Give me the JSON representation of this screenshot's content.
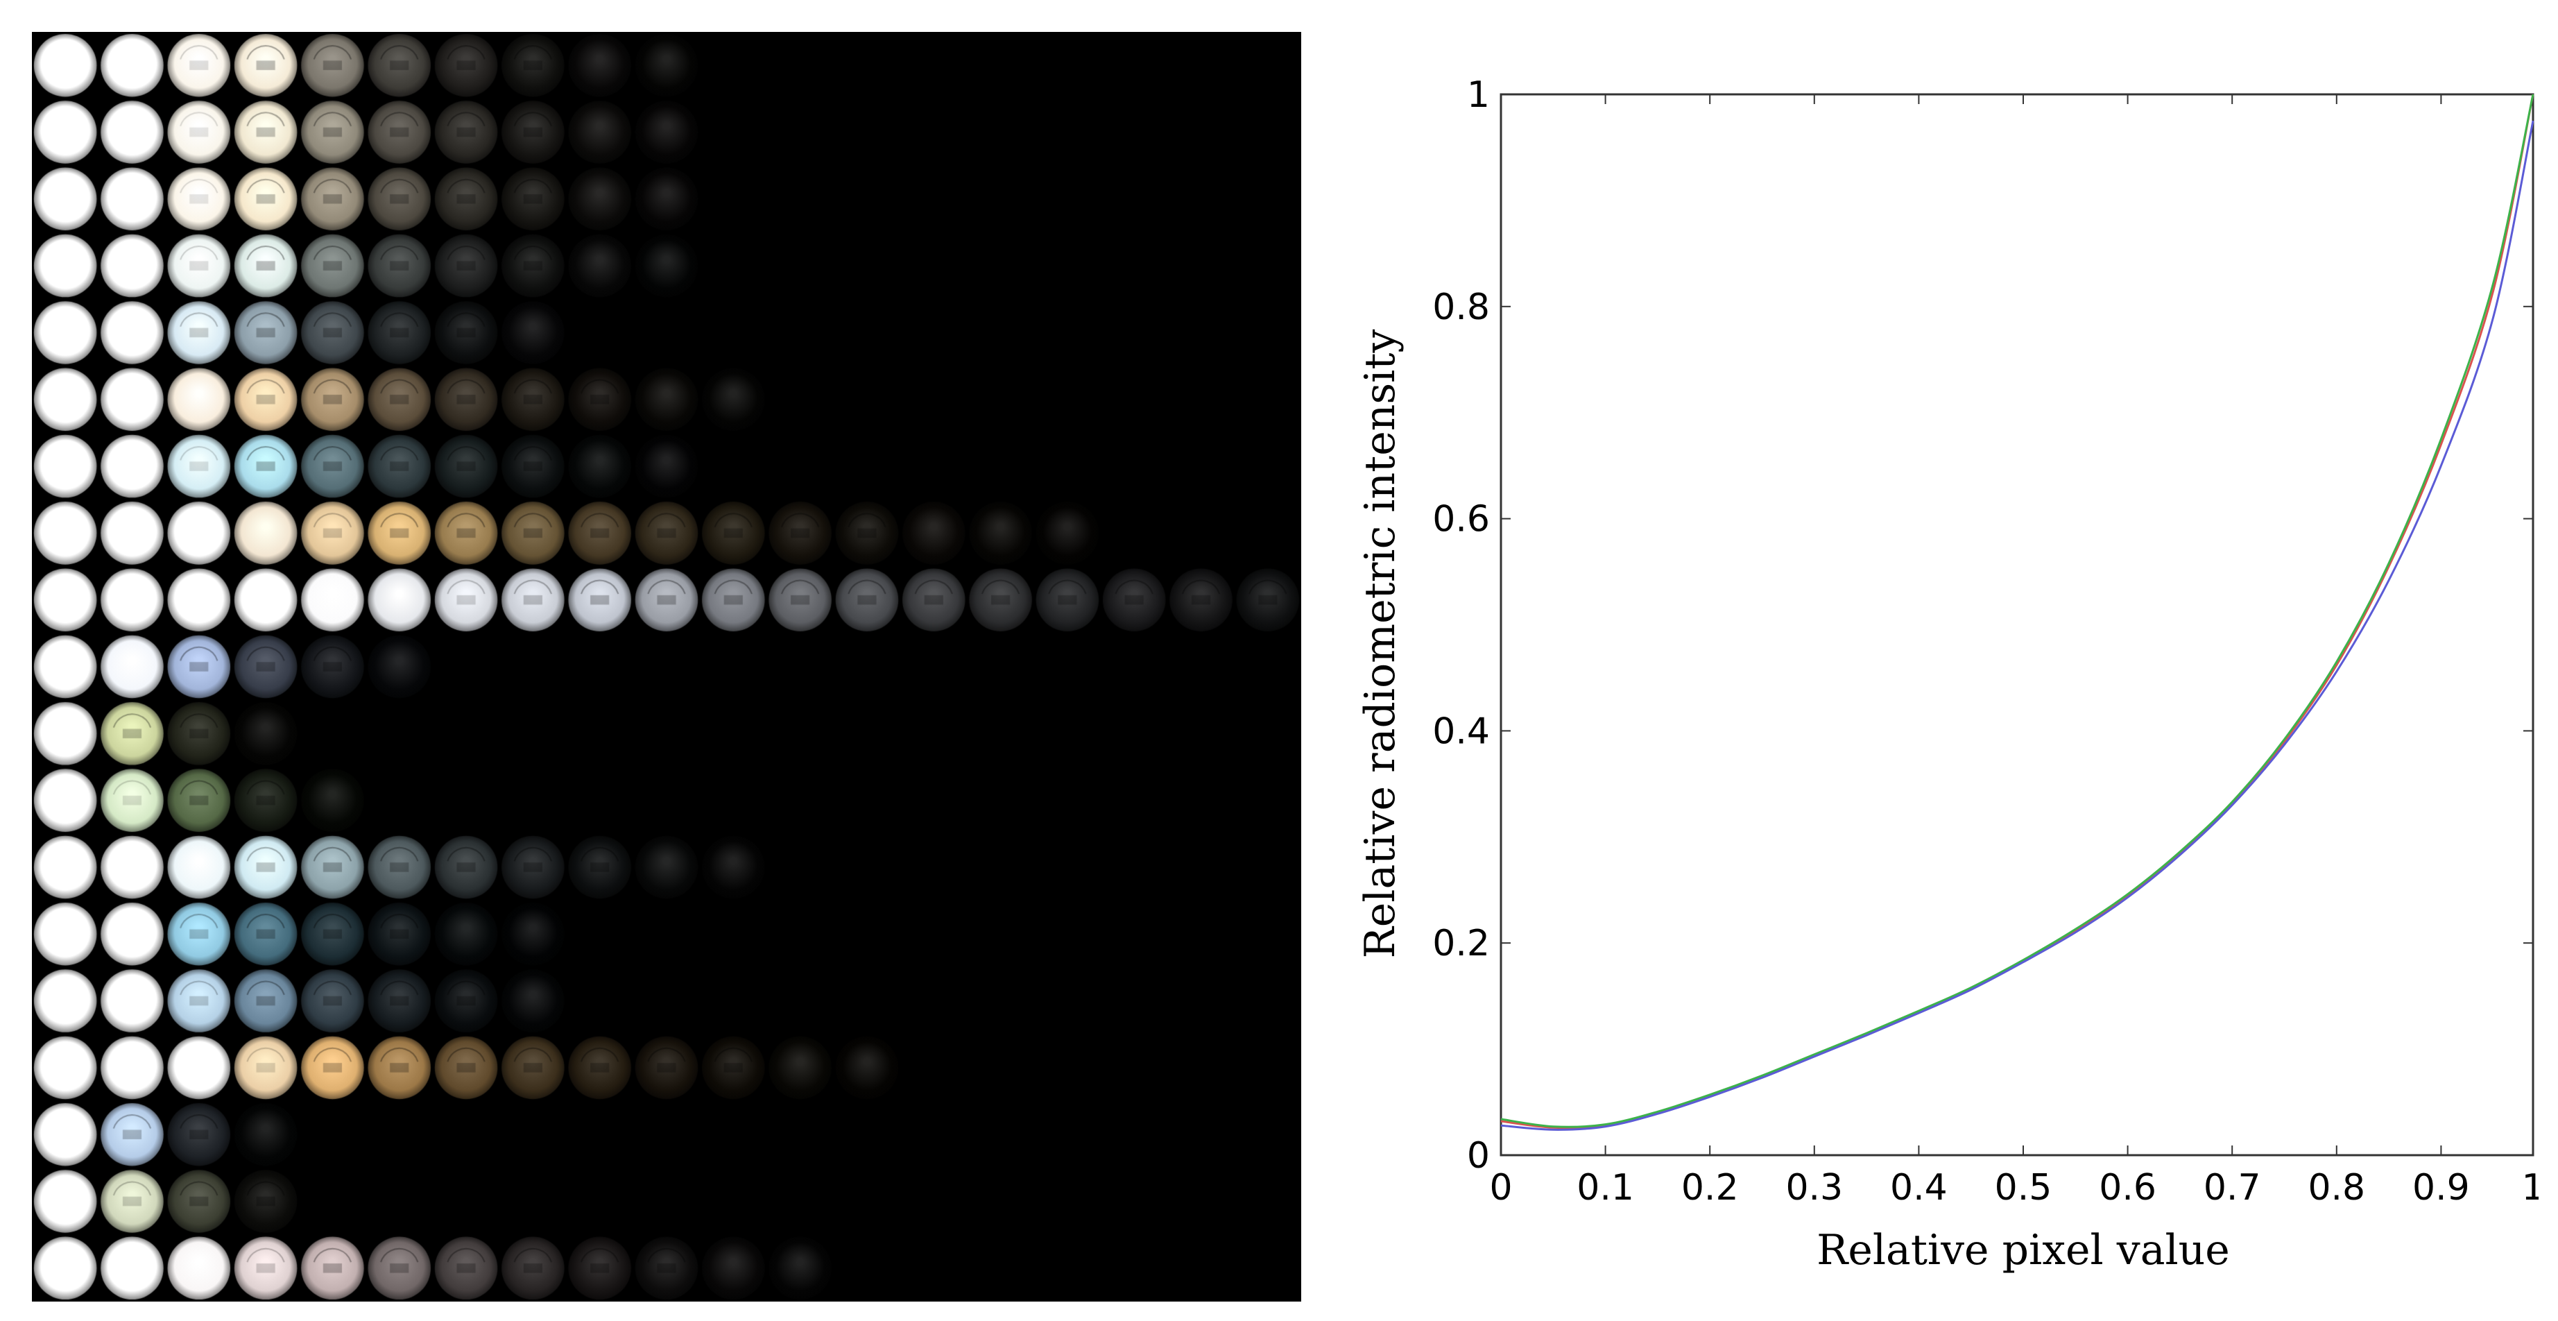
{
  "mosaic": {
    "rows": [
      {
        "tone": [
          245,
          235,
          215
        ],
        "falloff": 0.14
      },
      {
        "tone": [
          240,
          230,
          205
        ],
        "falloff": 0.15
      },
      {
        "tone": [
          245,
          230,
          200
        ],
        "falloff": 0.15
      },
      {
        "tone": [
          220,
          235,
          230
        ],
        "falloff": 0.14
      },
      {
        "tone": [
          200,
          225,
          240
        ],
        "falloff": 0.12
      },
      {
        "tone": [
          235,
          200,
          150
        ],
        "falloff": 0.16
      },
      {
        "tone": [
          170,
          220,
          235
        ],
        "falloff": 0.14
      },
      {
        "tone": [
          215,
          175,
          110
        ],
        "falloff": 0.24
      },
      {
        "tone": [
          190,
          195,
          205
        ],
        "falloff": 0.38
      },
      {
        "tone": [
          175,
          195,
          235
        ],
        "falloff": 0.09
      },
      {
        "tone": [
          200,
          210,
          150
        ],
        "falloff": 0.05
      },
      {
        "tone": [
          170,
          210,
          140
        ],
        "falloff": 0.07
      },
      {
        "tone": [
          200,
          230,
          240
        ],
        "falloff": 0.16
      },
      {
        "tone": [
          120,
          190,
          220
        ],
        "falloff": 0.11
      },
      {
        "tone": [
          150,
          190,
          220
        ],
        "falloff": 0.12
      },
      {
        "tone": [
          220,
          170,
          100
        ],
        "falloff": 0.2
      },
      {
        "tone": [
          175,
          200,
          230
        ],
        "falloff": 0.05
      },
      {
        "tone": [
          190,
          200,
          160
        ],
        "falloff": 0.06
      },
      {
        "tone": [
          210,
          190,
          190
        ],
        "falloff": 0.18
      }
    ],
    "columns": 19
  },
  "chart_data": {
    "type": "line",
    "xlabel": "Relative pixel value",
    "ylabel": "Relative radiometric intensity",
    "xlim": [
      0,
      1
    ],
    "ylim": [
      0,
      1
    ],
    "xticks": [
      "0",
      "0.1",
      "0.2",
      "0.3",
      "0.4",
      "0.5",
      "0.6",
      "0.7",
      "0.8",
      "0.9",
      "1"
    ],
    "yticks": [
      "0",
      "0.2",
      "0.4",
      "0.6",
      "0.8",
      "1"
    ],
    "grid": false,
    "x": [
      0,
      0.05,
      0.1,
      0.15,
      0.2,
      0.25,
      0.3,
      0.35,
      0.4,
      0.45,
      0.5,
      0.55,
      0.6,
      0.65,
      0.7,
      0.75,
      0.8,
      0.85,
      0.9,
      0.95,
      1.0
    ],
    "series": [
      {
        "color": "#d9534f",
        "values": [
          0.032,
          0.026,
          0.028,
          0.04,
          0.056,
          0.074,
          0.094,
          0.114,
          0.135,
          0.157,
          0.183,
          0.212,
          0.245,
          0.285,
          0.332,
          0.39,
          0.462,
          0.555,
          0.67,
          0.815,
          1.0
        ]
      },
      {
        "color": "#3cb34a",
        "values": [
          0.034,
          0.027,
          0.029,
          0.041,
          0.057,
          0.075,
          0.095,
          0.115,
          0.136,
          0.158,
          0.184,
          0.213,
          0.246,
          0.286,
          0.333,
          0.392,
          0.465,
          0.558,
          0.675,
          0.822,
          1.0
        ]
      },
      {
        "color": "#5b5bd6",
        "values": [
          0.028,
          0.024,
          0.027,
          0.039,
          0.055,
          0.073,
          0.093,
          0.113,
          0.134,
          0.156,
          0.182,
          0.21,
          0.243,
          0.283,
          0.33,
          0.387,
          0.456,
          0.542,
          0.65,
          0.79,
          0.975
        ]
      }
    ]
  }
}
